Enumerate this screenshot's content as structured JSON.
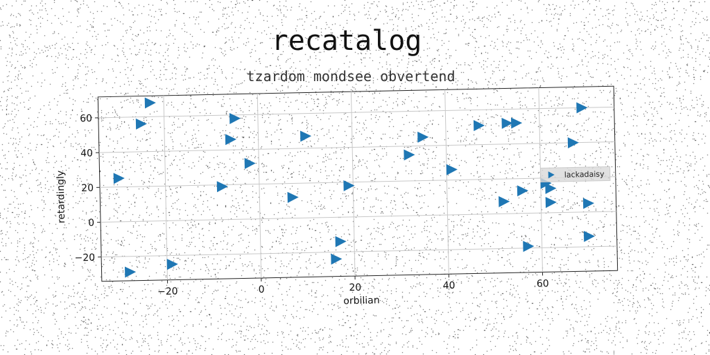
{
  "chart_data": {
    "type": "scatter",
    "title": "recatalog",
    "subtitle": "tzardom mondsee obvertend",
    "xlabel": "orbilian",
    "ylabel": "retardingly",
    "xlim": [
      -34,
      76
    ],
    "ylim": [
      -34,
      72
    ],
    "xticks": [
      "-20",
      "0",
      "20",
      "40",
      "60"
    ],
    "yticks": [
      "-20",
      "0",
      "20",
      "40",
      "60"
    ],
    "grid": true,
    "legend_position": "right",
    "marker": "triangle-right",
    "color": "#1f77b4",
    "series": [
      {
        "name": "lackadaisy",
        "x": [
          -23,
          -25,
          -5,
          -6,
          -2,
          -30,
          -8,
          -28,
          -19,
          10,
          7,
          19,
          17,
          16,
          32,
          35,
          41,
          47,
          53,
          55,
          69,
          67,
          61,
          62,
          56,
          52,
          62,
          70,
          57,
          70
        ],
        "y": [
          68,
          56,
          58,
          46,
          32,
          25,
          19,
          -29,
          -25,
          47,
          12,
          18,
          -14,
          -24,
          35,
          45,
          26,
          51,
          52,
          52,
          60,
          40,
          17,
          14,
          13,
          7,
          6,
          5,
          -19,
          -14
        ]
      }
    ]
  }
}
